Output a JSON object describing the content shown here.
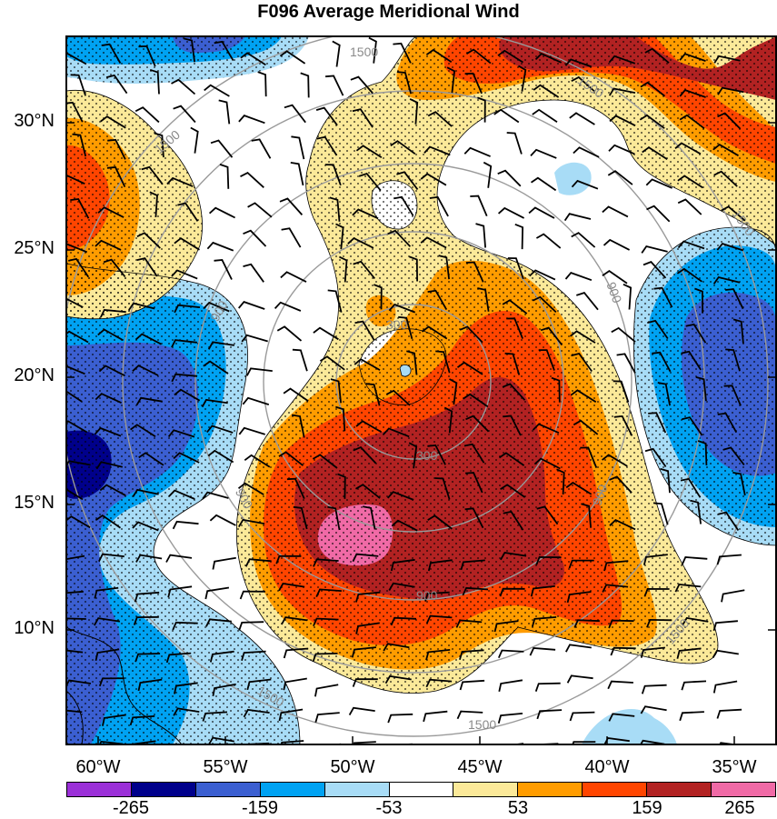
{
  "title": "F096 Average Meridional Wind",
  "lat_labels": [
    "30°N",
    "25°N",
    "20°N",
    "15°N",
    "10°N"
  ],
  "lon_labels": [
    "60°W",
    "55°W",
    "50°W",
    "45°W",
    "40°W",
    "35°W"
  ],
  "ring_labels": [
    "300",
    "300",
    "900",
    "900",
    "900",
    "1500",
    "1500",
    "1500",
    "1500",
    "1500"
  ],
  "colorbar": {
    "labels": [
      "-265",
      "-159",
      "-53",
      "53",
      "159",
      "265"
    ],
    "colors": [
      "#9b30d8",
      "#00008b",
      "#3b5fd1",
      "#00a2f2",
      "#a8dcf6",
      "#ffffff",
      "#fbe999",
      "#ff9c00",
      "#ff4500",
      "#b22222",
      "#f06aa6"
    ]
  },
  "colors": {
    "dot_pattern": "#000000",
    "range_rings": "#9a9a9a",
    "barbs": "#000000",
    "coastline": "#000000"
  }
}
